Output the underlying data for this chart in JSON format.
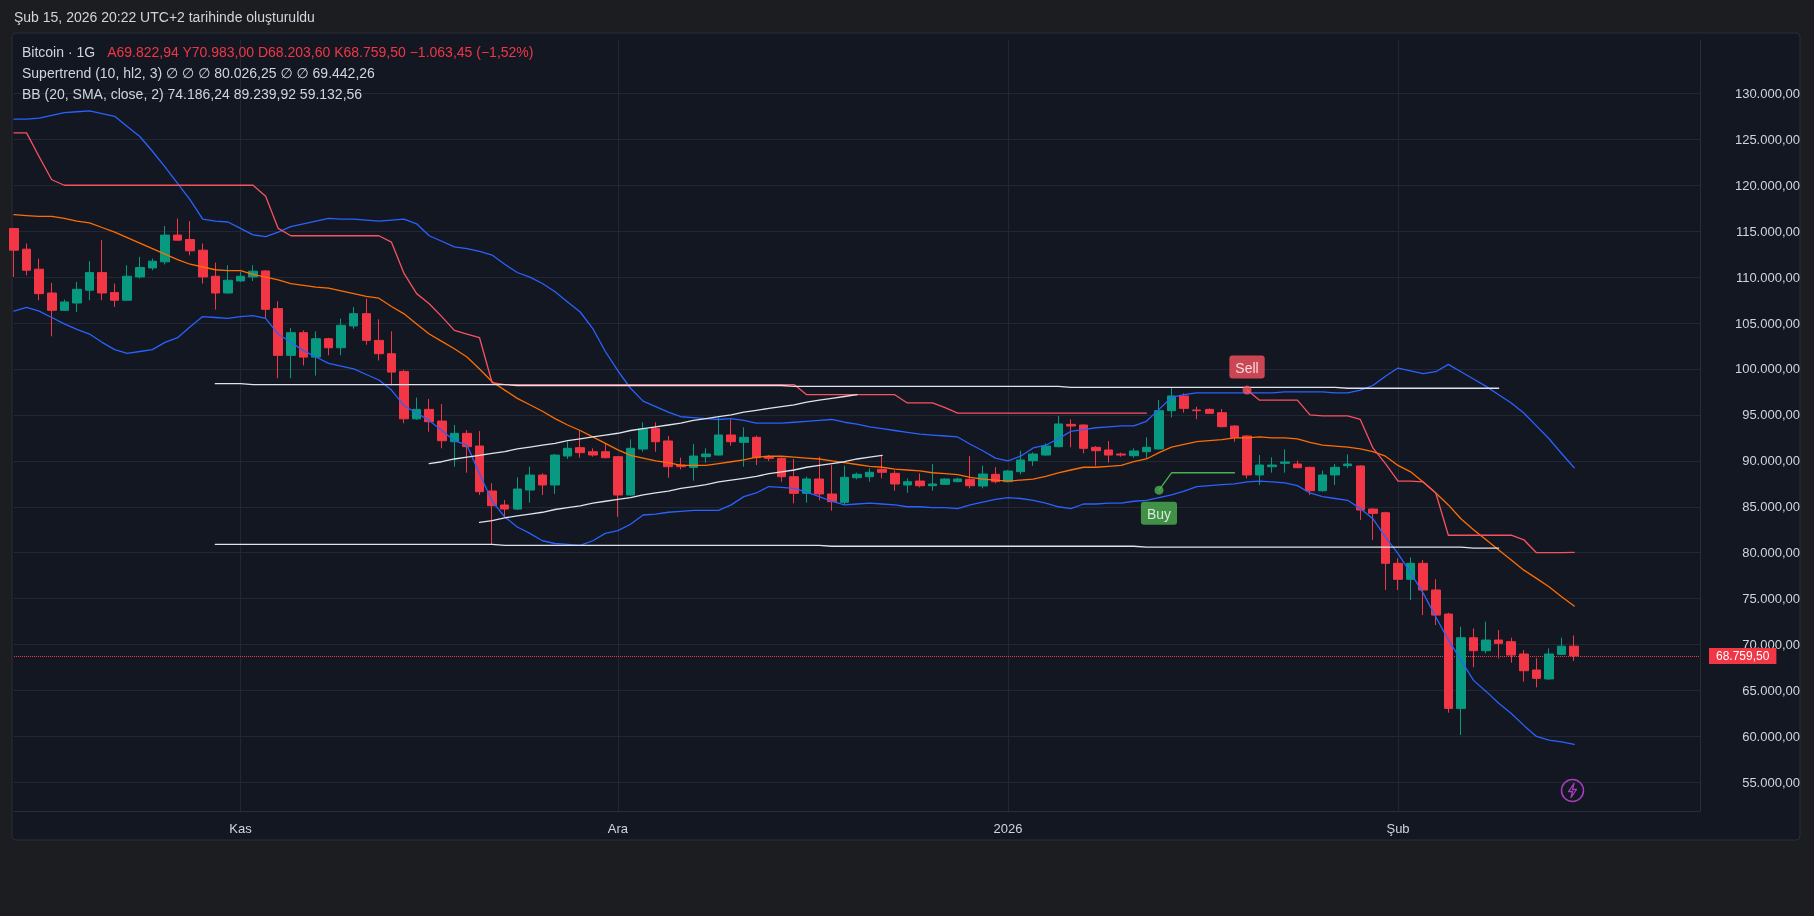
{
  "chart_data": {
    "type": "candlestick",
    "title": "Bitcoin · 1G",
    "subtitle": "Şub 15, 2026 20:22 UTC+2 tarihinde oluşturuldu",
    "annotations": [
      "A69.822,94 Y70.983,00 D68.203,60 K68.759,50 −1.063,45 (−1,52%)",
      "Supertrend (10, hl2, 3) ∅ ∅ ∅ 80.026,25 ∅ ∅ 69.442,26",
      "BB (20, SMA, close, 2) 74.186,24 89.239,92 59.132,56",
      {
        "text": "Sell",
        "y": 97700
      },
      {
        "text": "Buy",
        "y": 86800
      }
    ],
    "categories": [
      null,
      null,
      null,
      null,
      null,
      null,
      null,
      null,
      null,
      null,
      null,
      null,
      null,
      null,
      null,
      null,
      null,
      null,
      "Kas",
      null,
      null,
      null,
      null,
      null,
      null,
      null,
      null,
      null,
      null,
      null,
      null,
      null,
      null,
      null,
      null,
      null,
      null,
      null,
      null,
      null,
      null,
      null,
      null,
      null,
      null,
      null,
      null,
      null,
      "Ara",
      null,
      null,
      null,
      null,
      null,
      null,
      null,
      null,
      null,
      null,
      null,
      null,
      null,
      null,
      null,
      null,
      null,
      null,
      null,
      null,
      null,
      null,
      null,
      null,
      null,
      null,
      null,
      null,
      null,
      null,
      "2026",
      null,
      null,
      null,
      null,
      null,
      null,
      null,
      null,
      null,
      null,
      null,
      null,
      null,
      null,
      null,
      null,
      null,
      null,
      null,
      null,
      null,
      null,
      null,
      null,
      null,
      null,
      null,
      null,
      null,
      null,
      "Şub",
      null,
      null,
      null,
      null,
      null,
      null,
      null,
      null,
      null,
      null,
      null,
      null,
      null,
      null,
      null,
      null,
      null,
      null,
      null,
      null,
      null,
      null,
      null,
      null
    ],
    "ohlc": [
      [
        115290,
        115370,
        110020,
        112930
      ],
      [
        113040,
        113660,
        110200,
        110750
      ],
      [
        110860,
        112020,
        107480,
        108200
      ],
      [
        108270,
        109370,
        103550,
        106380
      ],
      [
        106380,
        107550,
        106310,
        107290
      ],
      [
        107180,
        109470,
        106200,
        108670
      ],
      [
        108570,
        111730,
        107480,
        110490
      ],
      [
        110490,
        114020,
        107480,
        108270
      ],
      [
        108310,
        109290,
        106750,
        107480
      ],
      [
        107480,
        111290,
        107400,
        110090
      ],
      [
        110020,
        112200,
        109840,
        111040
      ],
      [
        111000,
        112020,
        110750,
        111730
      ],
      [
        111660,
        115550,
        111370,
        114570
      ],
      [
        114570,
        116380,
        113950,
        114020
      ],
      [
        114090,
        116090,
        112380,
        112860
      ],
      [
        112930,
        113660,
        109290,
        110020
      ],
      [
        110090,
        111580,
        106460,
        108270
      ],
      [
        108270,
        111290,
        108200,
        109660
      ],
      [
        109580,
        110570,
        109480,
        110090
      ],
      [
        110020,
        111290,
        109580,
        110640
      ],
      [
        110670,
        110750,
        105480,
        106490
      ],
      [
        106570,
        107370,
        99000,
        101480
      ],
      [
        101480,
        104460,
        99000,
        103950
      ],
      [
        103950,
        104200,
        100380,
        101290
      ],
      [
        101290,
        104090,
        99290,
        103290
      ],
      [
        103290,
        103400,
        101480,
        102310
      ],
      [
        102310,
        105480,
        101480,
        104750
      ],
      [
        104680,
        106750,
        104380,
        106020
      ],
      [
        106020,
        107660,
        102640,
        103110
      ],
      [
        103110,
        105400,
        100930,
        101660
      ],
      [
        101660,
        104090,
        98200,
        99660
      ],
      [
        99730,
        99910,
        94090,
        94570
      ],
      [
        94570,
        96880,
        94460,
        95600
      ],
      [
        95600,
        96730,
        93170,
        94260
      ],
      [
        94330,
        96180,
        91360,
        92190
      ],
      [
        92080,
        93900,
        89360,
        92990
      ],
      [
        92990,
        93350,
        88710,
        91540
      ],
      [
        91610,
        93240,
        86280,
        86640
      ],
      [
        86710,
        87550,
        80830,
        85120
      ],
      [
        85190,
        85730,
        83850,
        84750
      ],
      [
        84750,
        88200,
        84640,
        86930
      ],
      [
        86820,
        89360,
        85440,
        88450
      ],
      [
        88450,
        88640,
        86280,
        87370
      ],
      [
        87370,
        90740,
        86390,
        90630
      ],
      [
        90520,
        92080,
        90200,
        91360
      ],
      [
        91430,
        93280,
        90340,
        90890
      ],
      [
        90990,
        91360,
        90450,
        90630
      ],
      [
        90990,
        91830,
        90270,
        90340
      ],
      [
        90450,
        90520,
        83920,
        86280
      ],
      [
        86280,
        92340,
        86200,
        91360
      ],
      [
        91280,
        94190,
        90990,
        93460
      ],
      [
        93530,
        94190,
        90990,
        92080
      ],
      [
        92160,
        92700,
        88160,
        89360
      ],
      [
        89540,
        90340,
        89070,
        89360
      ],
      [
        89290,
        91830,
        87840,
        90520
      ],
      [
        90450,
        91360,
        89800,
        90740
      ],
      [
        90630,
        94730,
        90560,
        92810
      ],
      [
        92810,
        94510,
        91650,
        92080
      ],
      [
        92010,
        93640,
        89360,
        92560
      ],
      [
        92560,
        92740,
        89540,
        90340
      ],
      [
        90450,
        90630,
        89980,
        90270
      ],
      [
        90270,
        90380,
        87730,
        88270
      ],
      [
        88270,
        90200,
        85370,
        86460
      ],
      [
        86460,
        88270,
        85440,
        88020
      ],
      [
        88020,
        90450,
        85700,
        86390
      ],
      [
        86390,
        89540,
        84570,
        85550
      ],
      [
        85480,
        89470,
        85260,
        88200
      ],
      [
        88160,
        88710,
        87980,
        88530
      ],
      [
        88270,
        89180,
        87730,
        88750
      ],
      [
        89070,
        90630,
        88090,
        88750
      ],
      [
        88640,
        88930,
        86750,
        87480
      ],
      [
        87370,
        88090,
        86530,
        87730
      ],
      [
        87800,
        88640,
        87110,
        87290
      ],
      [
        87290,
        89650,
        86750,
        87480
      ],
      [
        87440,
        88090,
        87370,
        88020
      ],
      [
        87730,
        88160,
        87660,
        88020
      ],
      [
        87980,
        90520,
        87000,
        87290
      ],
      [
        87260,
        89470,
        87000,
        88560
      ],
      [
        88530,
        89290,
        87550,
        87730
      ],
      [
        87730,
        89000,
        87660,
        88890
      ],
      [
        88820,
        91100,
        88530,
        90090
      ],
      [
        90020,
        90920,
        89440,
        90740
      ],
      [
        90630,
        91900,
        90560,
        91610
      ],
      [
        91540,
        94880,
        91470,
        94010
      ],
      [
        93970,
        94520,
        91470,
        93790
      ],
      [
        93900,
        93970,
        90810,
        91360
      ],
      [
        91470,
        91610,
        89470,
        91100
      ],
      [
        91180,
        92160,
        89800,
        90630
      ],
      [
        90740,
        90890,
        90450,
        90630
      ],
      [
        90560,
        91360,
        90340,
        91070
      ],
      [
        90990,
        92560,
        90200,
        91470
      ],
      [
        91290,
        96620,
        91250,
        95460
      ],
      [
        95460,
        97960,
        94730,
        97060
      ],
      [
        97060,
        97350,
        95240,
        95710
      ],
      [
        95530,
        95890,
        94520,
        95460
      ],
      [
        95600,
        95710,
        95100,
        95170
      ],
      [
        95240,
        95640,
        93640,
        93720
      ],
      [
        93790,
        93860,
        92080,
        92560
      ],
      [
        92700,
        92810,
        88090,
        88460
      ],
      [
        88460,
        90630,
        87370,
        89540
      ],
      [
        89360,
        90380,
        88710,
        89540
      ],
      [
        89730,
        91250,
        88710,
        89870
      ],
      [
        89650,
        90020,
        89220,
        89250
      ],
      [
        89290,
        89360,
        86280,
        86750
      ],
      [
        86750,
        88930,
        86640,
        88460
      ],
      [
        88460,
        89650,
        87370,
        89290
      ],
      [
        89470,
        90700,
        89180,
        89650
      ],
      [
        89440,
        89510,
        83560,
        84640
      ],
      [
        84750,
        84830,
        81380,
        84280
      ],
      [
        84350,
        84460,
        75940,
        78840
      ],
      [
        78840,
        79380,
        75940,
        77100
      ],
      [
        77100,
        79490,
        74850,
        78840
      ],
      [
        78840,
        79200,
        73210,
        75940
      ],
      [
        75940,
        77100,
        72120,
        73210
      ],
      [
        73320,
        73470,
        62580,
        63050
      ],
      [
        63050,
        71940,
        60150,
        70740
      ],
      [
        70740,
        71760,
        67520,
        69330
      ],
      [
        69330,
        72490,
        69040,
        70490
      ],
      [
        70490,
        71580,
        68500,
        70130
      ],
      [
        70310,
        70750,
        68020,
        68860
      ],
      [
        68970,
        69400,
        65960,
        67150
      ],
      [
        67230,
        68500,
        65340,
        66320
      ],
      [
        66250,
        69580,
        66140,
        68970
      ],
      [
        68930,
        70750,
        68860,
        69820
      ],
      [
        69822.94,
        70983,
        68203.6,
        68759.5
      ],
      null,
      null,
      null,
      null,
      null,
      null,
      null,
      null,
      null,
      null
    ],
    "colors": [
      "#f23645",
      "#f23645",
      "#f23645",
      "#f23645",
      "#089981",
      "#089981",
      "#089981",
      "#f23645",
      "#f23645",
      "#089981",
      "#089981",
      "#089981",
      "#089981",
      "#f23645",
      "#f23645",
      "#f23645",
      "#f23645",
      "#089981",
      "#089981",
      "#089981",
      "#f23645",
      "#f23645",
      "#089981",
      "#f23645",
      "#089981",
      "#f23645",
      "#089981",
      "#089981",
      "#f23645",
      "#f23645",
      "#f23645",
      "#f23645",
      "#089981",
      "#f23645",
      "#f23645",
      "#089981",
      "#f23645",
      "#f23645",
      "#f23645",
      "#f23645",
      "#089981",
      "#089981",
      "#f23645",
      "#089981",
      "#089981",
      "#f23645",
      "#f23645",
      "#f23645",
      "#f23645",
      "#089981",
      "#089981",
      "#f23645",
      "#f23645",
      "#f23645",
      "#089981",
      "#089981",
      "#089981",
      "#f23645",
      "#089981",
      "#f23645",
      "#f23645",
      "#f23645",
      "#f23645",
      "#089981",
      "#f23645",
      "#f23645",
      "#089981",
      "#089981",
      "#089981",
      "#f23645",
      "#f23645",
      "#089981",
      "#f23645",
      "#089981",
      "#089981",
      "#089981",
      "#f23645",
      "#089981",
      "#f23645",
      "#089981",
      "#089981",
      "#089981",
      "#089981",
      "#089981",
      "#f23645",
      "#f23645",
      "#f23645",
      "#f23645",
      "#f23645",
      "#089981",
      "#089981",
      "#089981",
      "#089981",
      "#f23645",
      "#f23645",
      "#f23645",
      "#f23645",
      "#f23645",
      "#f23645",
      "#089981",
      "#089981",
      "#089981",
      "#f23645",
      "#f23645",
      "#089981",
      "#089981",
      "#089981",
      "#f23645",
      "#f23645",
      "#f23645",
      "#f23645",
      "#089981",
      "#f23645",
      "#f23645",
      "#f23645",
      "#089981",
      "#f23645",
      "#089981",
      "#f23645",
      "#f23645",
      "#f23645",
      "#f23645",
      "#089981",
      "#089981",
      "#f23645",
      null,
      null,
      null,
      null,
      null,
      null,
      null,
      null,
      null,
      null
    ],
    "series": [
      {
        "type": "line",
        "color": "#2962ff",
        "values": [
          127200,
          127200,
          127300,
          127600,
          127900,
          128000,
          128100,
          127800,
          127500,
          126400,
          125300,
          123700,
          122000,
          120200,
          118400,
          116300,
          116100,
          116000,
          115300,
          114600,
          114400,
          114900,
          115500,
          115800,
          116100,
          116400,
          116300,
          116300,
          116200,
          116100,
          116200,
          116300,
          115800,
          114500,
          113900,
          113300,
          113100,
          112800,
          112400,
          111400,
          110500,
          110000,
          109300,
          108400,
          107300,
          106200,
          104400,
          101900,
          99800,
          97900,
          96500,
          95900,
          95300,
          94800,
          94700,
          94600,
          94500,
          94600,
          94400,
          94100,
          94100,
          94100,
          94200,
          94300,
          94400,
          94500,
          94200,
          94000,
          93700,
          93500,
          93300,
          93100,
          92900,
          92800,
          92700,
          92600,
          91800,
          91100,
          90300,
          90000,
          90500,
          91400,
          91700,
          92400,
          93200,
          93400,
          93600,
          93700,
          93800,
          93800,
          94300,
          95600,
          96900,
          97200,
          97400,
          97400,
          97400,
          97400,
          97400,
          97400,
          97400,
          97500,
          97500,
          97500,
          97500,
          97400,
          97400,
          97700,
          98200,
          99200,
          100100,
          99800,
          99500,
          99700,
          100500,
          99700,
          98900,
          98100,
          97200,
          96300,
          95200,
          93800,
          92400,
          90800,
          89239.92,
          null,
          null,
          null,
          null,
          null,
          null,
          null,
          null,
          null,
          null
        ]
      },
      {
        "type": "line",
        "color": "#ff6d00",
        "values": [
          116800,
          116700,
          116600,
          116600,
          116400,
          116100,
          115900,
          115400,
          114900,
          114300,
          113700,
          113100,
          112500,
          111900,
          111400,
          111100,
          110800,
          110700,
          110700,
          110300,
          110000,
          109700,
          109300,
          109100,
          108900,
          108800,
          108500,
          108200,
          107900,
          107700,
          106800,
          106000,
          104900,
          103800,
          103000,
          102200,
          101300,
          100000,
          98600,
          97700,
          96800,
          96100,
          95400,
          94600,
          93900,
          93300,
          92600,
          91900,
          91200,
          90600,
          90300,
          90000,
          89800,
          89500,
          89500,
          89500,
          89700,
          89900,
          90100,
          90400,
          90500,
          90500,
          90400,
          90300,
          90200,
          90000,
          89800,
          89600,
          89400,
          89300,
          89100,
          89000,
          88900,
          88700,
          88600,
          88500,
          88200,
          88000,
          87900,
          87800,
          87900,
          88000,
          88300,
          88700,
          89000,
          89300,
          89300,
          89400,
          89500,
          89900,
          90200,
          90900,
          91500,
          91800,
          92100,
          92200,
          92300,
          92500,
          92500,
          92600,
          92500,
          92500,
          92400,
          92000,
          91700,
          91600,
          91500,
          91300,
          91000,
          90500,
          89500,
          88800,
          87700,
          86500,
          85200,
          83700,
          82500,
          81400,
          80300,
          79200,
          78100,
          77200,
          76300,
          75200,
          74186.24,
          null,
          null,
          null,
          null,
          null,
          null,
          null,
          null,
          null,
          null
        ]
      },
      {
        "type": "line",
        "color": "#2962ff",
        "values": [
          106300,
          106700,
          106300,
          105600,
          104900,
          104300,
          103800,
          102900,
          102100,
          101700,
          101900,
          102100,
          102900,
          103400,
          104600,
          105700,
          105600,
          105500,
          105700,
          105800,
          105500,
          103800,
          102900,
          102000,
          101300,
          100600,
          100300,
          100000,
          99400,
          98800,
          97700,
          96000,
          95200,
          94400,
          93300,
          92200,
          91700,
          88600,
          85600,
          83900,
          82800,
          82100,
          81300,
          81000,
          80900,
          80800,
          81300,
          82100,
          82400,
          83100,
          84100,
          84200,
          84400,
          84500,
          84600,
          84600,
          84600,
          85200,
          86100,
          86500,
          87200,
          87100,
          87000,
          86600,
          86100,
          85600,
          85200,
          85300,
          85400,
          85300,
          85200,
          85000,
          85000,
          84900,
          84900,
          84800,
          85200,
          85500,
          85800,
          86000,
          85900,
          85700,
          85400,
          85000,
          84800,
          85300,
          85300,
          85400,
          85400,
          85600,
          85700,
          86000,
          86300,
          86700,
          87200,
          87300,
          87400,
          87500,
          87700,
          87800,
          87700,
          87600,
          87300,
          86500,
          86100,
          85900,
          85700,
          84800,
          83700,
          81700,
          79900,
          77800,
          75600,
          73000,
          70500,
          68300,
          66100,
          64900,
          63600,
          62500,
          61200,
          60000,
          59600,
          59400,
          59132.56,
          null,
          null,
          null,
          null,
          null,
          null,
          null,
          null,
          null,
          null
        ]
      },
      {
        "type": "line",
        "color": "#f7525f",
        "values": [
          125700,
          125700,
          123100,
          120600,
          120000,
          120000,
          120000,
          120000,
          120000,
          120000,
          120000,
          120000,
          120000,
          120000,
          120000,
          120000,
          120000,
          120000,
          120000,
          120000,
          118800,
          115300,
          114500,
          114500,
          114500,
          114500,
          114500,
          114500,
          114500,
          114500,
          113800,
          110400,
          108200,
          107100,
          105700,
          104200,
          103800,
          103400,
          98500,
          98300,
          98300,
          98300,
          98300,
          98300,
          98300,
          98300,
          98300,
          98300,
          98300,
          98300,
          98300,
          98300,
          98300,
          98300,
          98300,
          98300,
          98300,
          98300,
          98300,
          98300,
          98300,
          98300,
          98300,
          97200,
          97200,
          97200,
          97200,
          97200,
          97200,
          97200,
          97200,
          96300,
          96300,
          96300,
          95800,
          95200,
          95200,
          95200,
          95200,
          95200,
          95200,
          95200,
          95200,
          95200,
          95200,
          95200,
          95200,
          95200,
          95200,
          95200,
          95200,
          null,
          null,
          null,
          null,
          null,
          null,
          null,
          97700,
          96600,
          96600,
          96600,
          96600,
          95000,
          94900,
          94900,
          94900,
          94500,
          91400,
          89700,
          87800,
          87800,
          87700,
          86500,
          81900,
          81900,
          81900,
          81900,
          81900,
          81900,
          81400,
          80000,
          80000,
          80000,
          80026.25,
          null,
          null,
          null,
          null,
          null,
          null,
          null,
          null,
          null,
          null
        ]
      },
      {
        "type": "line",
        "color": "#4caf50",
        "values": [
          null,
          null,
          null,
          null,
          null,
          null,
          null,
          null,
          null,
          null,
          null,
          null,
          null,
          null,
          null,
          null,
          null,
          null,
          null,
          null,
          null,
          null,
          null,
          null,
          null,
          null,
          null,
          null,
          null,
          null,
          null,
          null,
          null,
          null,
          null,
          null,
          null,
          null,
          null,
          null,
          null,
          null,
          null,
          null,
          null,
          null,
          null,
          null,
          null,
          null,
          null,
          null,
          null,
          null,
          null,
          null,
          null,
          null,
          null,
          null,
          null,
          null,
          null,
          null,
          null,
          null,
          null,
          null,
          null,
          null,
          null,
          null,
          null,
          null,
          null,
          null,
          null,
          null,
          null,
          null,
          null,
          null,
          null,
          null,
          null,
          null,
          null,
          null,
          null,
          null,
          null,
          86800,
          88700,
          88700,
          88700,
          88700,
          88700,
          88700,
          null,
          null,
          null,
          null,
          null,
          null,
          null,
          null,
          null,
          null,
          null,
          null,
          null,
          null,
          null,
          null,
          null,
          null,
          null,
          null,
          null,
          null,
          null,
          null,
          null,
          null,
          null,
          null,
          null,
          null,
          null,
          null,
          null,
          null,
          null,
          null,
          null
        ]
      },
      {
        "type": "line",
        "color": "#e0e3eb",
        "values": [
          null,
          null,
          null,
          null,
          null,
          null,
          null,
          null,
          null,
          null,
          null,
          null,
          null,
          null,
          null,
          null,
          98400,
          98400,
          98400,
          98300,
          98300,
          98300,
          98300,
          98300,
          98300,
          98300,
          98300,
          98300,
          98300,
          98300,
          98300,
          98300,
          98300,
          98300,
          98300,
          98300,
          98300,
          98300,
          98300,
          98300,
          98200,
          98200,
          98200,
          98200,
          98200,
          98200,
          98200,
          98200,
          98200,
          98200,
          98200,
          98200,
          98200,
          98200,
          98200,
          98200,
          98200,
          98200,
          98200,
          98200,
          98200,
          98200,
          98100,
          98100,
          98100,
          98100,
          98100,
          98100,
          98100,
          98100,
          98100,
          98100,
          98100,
          98100,
          98100,
          98100,
          98100,
          98100,
          98100,
          98100,
          98100,
          98100,
          98100,
          98100,
          98000,
          98000,
          98000,
          98000,
          98000,
          98000,
          98000,
          98000,
          98000,
          98000,
          98000,
          98000,
          98000,
          98000,
          98000,
          98000,
          98000,
          98000,
          98000,
          98000,
          98000,
          98000,
          97900,
          97900,
          97900,
          97900,
          97900,
          97900,
          97900,
          97900,
          97900,
          97900,
          97900,
          97900,
          97900,
          null,
          null,
          null,
          null,
          null,
          null,
          null,
          null,
          null,
          null,
          null,
          null,
          null,
          null,
          null,
          null
        ]
      },
      {
        "type": "line",
        "color": "#e0e3eb",
        "values": [
          null,
          null,
          null,
          null,
          null,
          null,
          null,
          null,
          null,
          null,
          null,
          null,
          null,
          null,
          null,
          null,
          80900,
          80900,
          80900,
          80900,
          80900,
          80900,
          80900,
          80900,
          80900,
          80900,
          80900,
          80900,
          80900,
          80900,
          80900,
          80900,
          80900,
          80900,
          80900,
          80900,
          80900,
          80900,
          80900,
          80800,
          80800,
          80800,
          80800,
          80800,
          80800,
          80800,
          80800,
          80800,
          80800,
          80800,
          80800,
          80800,
          80800,
          80800,
          80800,
          80800,
          80800,
          80800,
          80800,
          80800,
          80800,
          80800,
          80800,
          80800,
          80800,
          80700,
          80700,
          80700,
          80700,
          80700,
          80700,
          80700,
          80700,
          80700,
          80700,
          80700,
          80700,
          80700,
          80700,
          80700,
          80700,
          80700,
          80700,
          80700,
          80700,
          80700,
          80700,
          80700,
          80700,
          80700,
          80600,
          80600,
          80600,
          80600,
          80600,
          80600,
          80600,
          80600,
          80600,
          80600,
          80600,
          80600,
          80600,
          80600,
          80600,
          80600,
          80600,
          80600,
          80600,
          80600,
          80600,
          80600,
          80600,
          80600,
          80600,
          80600,
          80500,
          80500,
          80500,
          null,
          null,
          null,
          null,
          null,
          null,
          null,
          null,
          null,
          null,
          null,
          null,
          null,
          null,
          null,
          null
        ]
      },
      {
        "type": "line",
        "color": "#e0e3eb",
        "values": [
          null,
          null,
          null,
          null,
          null,
          null,
          null,
          null,
          null,
          null,
          null,
          null,
          null,
          null,
          null,
          null,
          null,
          null,
          null,
          null,
          null,
          null,
          null,
          null,
          null,
          null,
          null,
          null,
          null,
          null,
          null,
          null,
          null,
          89700,
          89900,
          90200,
          90400,
          90600,
          90800,
          91000,
          91300,
          91500,
          91700,
          91900,
          92200,
          92400,
          92600,
          92800,
          93000,
          93300,
          93500,
          93700,
          93900,
          94100,
          94400,
          94600,
          94800,
          95000,
          95300,
          95500,
          95700,
          95900,
          96100,
          96400,
          96600,
          96800,
          97000,
          97200,
          null,
          null,
          null,
          null,
          null,
          null,
          null,
          null,
          null,
          null,
          null,
          null,
          null,
          null,
          null,
          null,
          null,
          null,
          null,
          null,
          null,
          null,
          null,
          null,
          null,
          null,
          null,
          null,
          null,
          null,
          null,
          null,
          null,
          null,
          null,
          null,
          null,
          null,
          null,
          null,
          null,
          null,
          null,
          null,
          null,
          null,
          null,
          null,
          null,
          null,
          null,
          null,
          null,
          null,
          null,
          null,
          null,
          null,
          null,
          null,
          null,
          null,
          null,
          null,
          null,
          null,
          null
        ]
      },
      {
        "type": "line",
        "color": "#e0e3eb",
        "values": [
          null,
          null,
          null,
          null,
          null,
          null,
          null,
          null,
          null,
          null,
          null,
          null,
          null,
          null,
          null,
          null,
          null,
          null,
          null,
          null,
          null,
          null,
          null,
          null,
          null,
          null,
          null,
          null,
          null,
          null,
          null,
          null,
          null,
          null,
          null,
          null,
          null,
          83300,
          83500,
          83800,
          84000,
          84200,
          84400,
          84700,
          84900,
          85100,
          85400,
          85600,
          85800,
          86000,
          86300,
          86500,
          86700,
          87000,
          87200,
          87400,
          87700,
          87900,
          88100,
          88300,
          88600,
          88800,
          89000,
          89300,
          89500,
          89700,
          89900,
          90200,
          90400,
          90600,
          null,
          null,
          null,
          null,
          null,
          null,
          null,
          null,
          null,
          null,
          null,
          null,
          null,
          null,
          null,
          null,
          null,
          null,
          null,
          null,
          null,
          null,
          null,
          null,
          null,
          null,
          null,
          null,
          null,
          null,
          null,
          null,
          null,
          null,
          null,
          null,
          null,
          null,
          null,
          null,
          null,
          null,
          null,
          null,
          null,
          null,
          null,
          null,
          null,
          null,
          null,
          null,
          null,
          null,
          null,
          null,
          null,
          null,
          null,
          null,
          null,
          null,
          null,
          null,
          null
        ]
      }
    ],
    "ylim": [
      51880,
      135810
    ],
    "yticks": [
      {
        "value": 55000,
        "label": "55.000,00"
      },
      {
        "value": 60000,
        "label": "60.000,00"
      },
      {
        "value": 65000,
        "label": "65.000,00"
      },
      {
        "value": 70000,
        "label": "70.000,00"
      },
      {
        "value": 75000,
        "label": "75.000,00"
      },
      {
        "value": 80000,
        "label": "80.000,00"
      },
      {
        "value": 85000,
        "label": "85.000,00"
      },
      {
        "value": 90000,
        "label": "90.000,00"
      },
      {
        "value": 95000,
        "label": "95.000,00"
      },
      {
        "value": 100000,
        "label": "100.000,00"
      },
      {
        "value": 105000,
        "label": "105.000,00"
      },
      {
        "value": 110000,
        "label": "110.000,00"
      },
      {
        "value": 115000,
        "label": "115.000,00"
      },
      {
        "value": 120000,
        "label": "120.000,00"
      },
      {
        "value": 125000,
        "label": "125.000,00"
      },
      {
        "value": 130000,
        "label": "130.000,00"
      }
    ],
    "ref_lines": [
      {
        "axis": "y",
        "value": 68759.5,
        "label": "68.759,50",
        "color": "#f23645",
        "line_style": "dotted"
      }
    ],
    "grid": true,
    "marker": "none"
  }
}
